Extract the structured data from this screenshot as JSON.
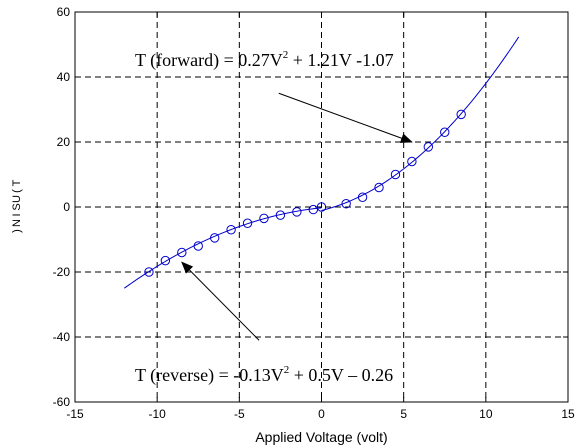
{
  "chart_data": {
    "type": "line",
    "title": "",
    "xlabel": "Applied Voltage (volt)",
    "ylabel": "T (unit) rotated garbled glyphs",
    "ylabel_glyphs": [
      ")",
      "N",
      "I",
      "S",
      "U",
      "(",
      "T"
    ],
    "xlim": [
      -15,
      15
    ],
    "ylim": [
      -60,
      60
    ],
    "xticks": [
      -15,
      -10,
      -5,
      0,
      5,
      10,
      15
    ],
    "yticks": [
      -60,
      -40,
      -20,
      0,
      20,
      40,
      60
    ],
    "grid": "dashed",
    "colors": {
      "curve": "#0000cc",
      "markers": "#0000cc",
      "grid": "#000000",
      "arrow": "#000000"
    },
    "series": [
      {
        "style": "curve",
        "fit_forward": {
          "a": 0.27,
          "b": 1.21,
          "c": -1.07,
          "x_range": [
            0,
            12
          ]
        },
        "fit_reverse": {
          "a": -0.13,
          "b": 0.5,
          "c": -0.26,
          "x_range": [
            -12,
            0
          ]
        }
      },
      {
        "style": "markers",
        "x": [
          -10.5,
          -9.5,
          -8.5,
          -7.5,
          -6.5,
          -5.5,
          -4.5,
          -3.5,
          -2.5,
          -1.5,
          -0.5,
          0,
          1.5,
          2.5,
          3.5,
          4.5,
          5.5,
          6.5,
          7.5,
          8.5
        ],
        "y": [
          -20,
          -16.5,
          -14,
          -12,
          -9.5,
          -7,
          -5,
          -3.5,
          -2.5,
          -1.5,
          -0.8,
          0,
          1,
          3,
          6,
          10,
          14,
          18.5,
          23,
          28.5
        ]
      }
    ],
    "annotations": [
      {
        "id": "forward",
        "pre": "T (forward) = 0.27V",
        "sup": "2",
        "post": " + 1.21V -1.07",
        "arrow_from": [
          -2.6,
          35
        ],
        "arrow_to": [
          5.5,
          20
        ]
      },
      {
        "id": "reverse",
        "pre": "T (reverse) = -0.13V",
        "sup": "2",
        "post": " + 0.5V – 0.26",
        "arrow_from": [
          -3.8,
          -41
        ],
        "arrow_to": [
          -8.5,
          -17
        ]
      }
    ]
  }
}
